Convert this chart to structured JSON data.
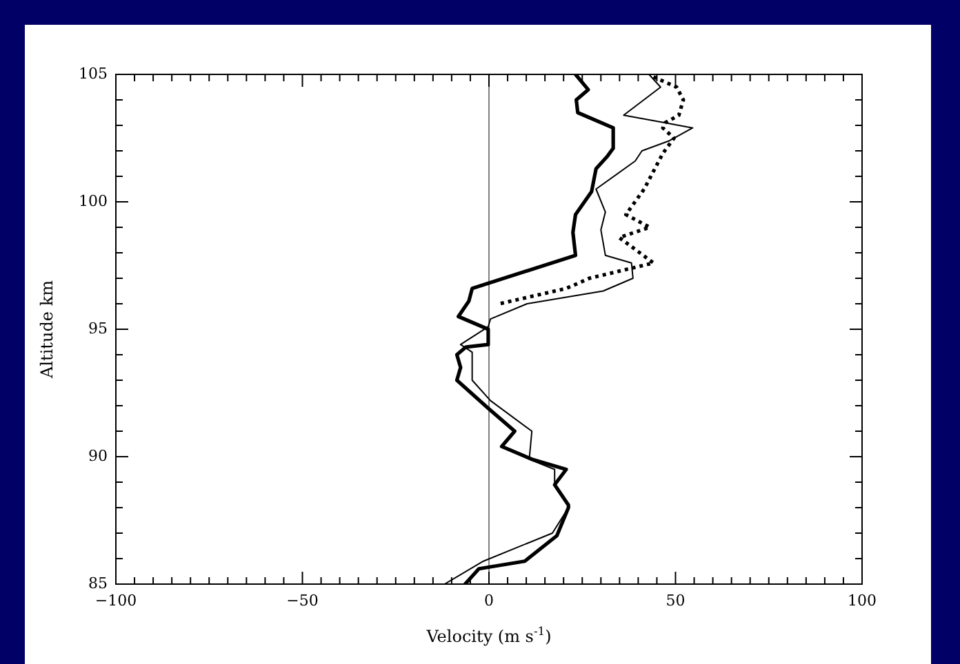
{
  "chart_data": {
    "type": "line",
    "xlabel": "Velocity (m s$^{-1}$)",
    "ylabel": "Altitude km",
    "xlim": [
      -100,
      100
    ],
    "ylim": [
      85,
      105
    ],
    "xticks": [
      -100,
      {
        "value": -95,
        "label": null
      },
      {
        "value": -90,
        "label": null
      },
      {
        "value": -85,
        "label": null
      },
      {
        "value": -80,
        "label": null
      },
      {
        "value": -75,
        "label": null
      },
      {
        "value": -70,
        "label": null
      },
      {
        "value": -65,
        "label": null
      },
      {
        "value": -60,
        "label": null
      },
      {
        "value": -55,
        "label": null
      },
      -50,
      {
        "value": -45,
        "label": null
      },
      {
        "value": -40,
        "label": null
      },
      {
        "value": -35,
        "label": null
      },
      {
        "value": -30,
        "label": null
      },
      {
        "value": -25,
        "label": null
      },
      {
        "value": -20,
        "label": null
      },
      {
        "value": -15,
        "label": null
      },
      {
        "value": -10,
        "label": null
      },
      {
        "value": -5,
        "label": null
      },
      0,
      {
        "value": 5,
        "label": null
      },
      {
        "value": 10,
        "label": null
      },
      {
        "value": 15,
        "label": null
      },
      {
        "value": 20,
        "label": null
      },
      {
        "value": 25,
        "label": null
      },
      {
        "value": 30,
        "label": null
      },
      {
        "value": 35,
        "label": null
      },
      {
        "value": 40,
        "label": null
      },
      {
        "value": 45,
        "label": null
      },
      50,
      {
        "value": 55,
        "label": null
      },
      {
        "value": 60,
        "label": null
      },
      {
        "value": 65,
        "label": null
      },
      {
        "value": 70,
        "label": null
      },
      {
        "value": 75,
        "label": null
      },
      {
        "value": 80,
        "label": null
      },
      {
        "value": 85,
        "label": null
      },
      {
        "value": 90,
        "label": null
      },
      {
        "value": 95,
        "label": null
      },
      100
    ],
    "yticks": [
      85,
      {
        "value": 86,
        "label": null
      },
      {
        "value": 87,
        "label": null
      },
      {
        "value": 88,
        "label": null
      },
      {
        "value": 89,
        "label": null
      },
      90,
      {
        "value": 91,
        "label": null
      },
      {
        "value": 92,
        "label": null
      },
      {
        "value": 93,
        "label": null
      },
      {
        "value": 94,
        "label": null
      },
      95,
      {
        "value": 96,
        "label": null
      },
      {
        "value": 97,
        "label": null
      },
      {
        "value": 98,
        "label": null
      },
      {
        "value": 99,
        "label": null
      },
      100,
      {
        "value": 101,
        "label": null
      },
      {
        "value": 102,
        "label": null
      },
      {
        "value": 103,
        "label": null
      },
      {
        "value": 104,
        "label": null
      },
      105
    ],
    "grid": false,
    "legend": false,
    "marker": "none",
    "ref_lines": [
      {
        "axis": "x",
        "value": 0,
        "color": "#808080"
      }
    ],
    "series": [
      {
        "color": "#000000",
        "line_style": "solid",
        "x": [
          23.2,
          26.6,
          23.4,
          23.8,
          33.3,
          33.3,
          31.8,
          28.7,
          27.5,
          23.2,
          22.5,
          23.2,
          -4.5,
          -5.4,
          -8.2,
          -0.2,
          -0.2,
          -6.2,
          -8.6,
          -7.6,
          -8.6,
          -0.2,
          6.9,
          3.4,
          11.5,
          20.7,
          17.6,
          21.3,
          21.3,
          18.2,
          9.6,
          -2.7,
          -6.4
        ],
        "values": [
          105,
          104.4,
          104,
          103.5,
          102.9,
          102.1,
          101.8,
          101.3,
          100.4,
          99.5,
          98.8,
          97.9,
          96.6,
          96.1,
          95.5,
          95.0,
          94.4,
          94.3,
          94.0,
          93.5,
          93.0,
          91.9,
          91.0,
          90.4,
          89.9,
          89.5,
          88.9,
          88.1,
          88.0,
          86.9,
          85.9,
          85.6,
          85
        ]
      },
      {
        "color": "#000000",
        "line_style": "solid",
        "x": [
          42.9,
          46,
          36.1,
          47.2,
          54.6,
          48.4,
          41,
          39.2,
          28.7,
          31.2,
          30,
          31.2,
          38.2,
          38.6,
          30.6,
          10.2,
          0.4,
          -0.2,
          -7.6,
          -4.5,
          -4.5,
          0.4,
          11.5,
          10.8,
          17.6,
          17.6,
          21.3,
          21.3,
          17,
          -1.5,
          -11.9
        ],
        "values": [
          105,
          104.5,
          103.4,
          103.1,
          102.9,
          102.4,
          102.0,
          101.6,
          100.5,
          99.6,
          98.9,
          97.9,
          97.6,
          97.0,
          96.5,
          96.0,
          95.4,
          95.1,
          94.4,
          94.1,
          93.0,
          92.2,
          91.0,
          89.9,
          89.5,
          88.9,
          88.1,
          88.0,
          87.0,
          85.9,
          85
        ]
      },
      {
        "color": "#000000",
        "line_style": "dotted",
        "x": [
          44.1,
          50.3,
          52.1,
          50.9,
          47.2,
          46.6,
          49.6,
          46.6,
          41.6,
          36.7,
          43.1,
          34.9,
          44.1,
          26.9,
          20.7,
          2.8
        ],
        "values": [
          104.9,
          104.5,
          104.0,
          103.4,
          103.1,
          102.9,
          102.5,
          101.9,
          100.5,
          99.5,
          99.0,
          98.6,
          97.6,
          97.0,
          96.6,
          96.0
        ]
      }
    ]
  }
}
